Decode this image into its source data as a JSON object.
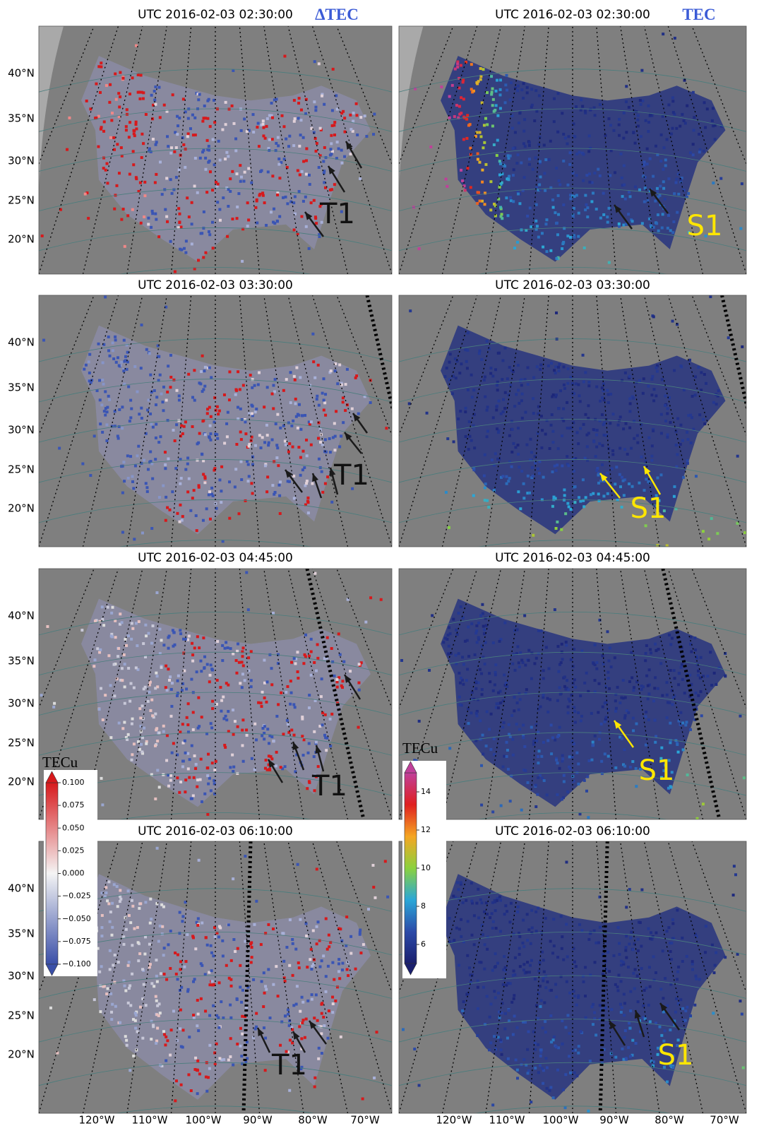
{
  "column_labels": [
    "ΔTEC",
    "TEC"
  ],
  "panels": [
    {
      "title": "UTC 2016-02-03 02:30:00",
      "annotation": "T1"
    },
    {
      "title": "UTC 2016-02-03 02:30:00",
      "annotation": "S1"
    },
    {
      "title": "UTC 2016-02-03 03:30:00",
      "annotation": "T1"
    },
    {
      "title": "UTC 2016-02-03 03:30:00",
      "annotation": "S1"
    },
    {
      "title": "UTC 2016-02-03 04:45:00",
      "annotation": "T1"
    },
    {
      "title": "UTC 2016-02-03 04:45:00",
      "annotation": "S1"
    },
    {
      "title": "UTC 2016-02-03 06:10:00",
      "annotation": "T1"
    },
    {
      "title": "UTC 2016-02-03 06:10:00",
      "annotation": "S1"
    }
  ],
  "lat_labels": [
    "40°N",
    "35°N",
    "30°N",
    "25°N",
    "20°N"
  ],
  "lon_labels": [
    "120°W",
    "110°W",
    "100°W",
    "90°W",
    "80°W",
    "70°W"
  ],
  "colorbars": [
    {
      "label": "TECu",
      "lim": [
        -0.1,
        0.1
      ],
      "colors": [
        "#3a4fa8",
        "#f4f4f4",
        "#d7191c"
      ],
      "ticks": [
        {
          "value": 0.1,
          "label": "0.100"
        },
        {
          "value": 0.075,
          "label": "0.075"
        },
        {
          "value": 0.05,
          "label": "0.050"
        },
        {
          "value": 0.025,
          "label": "0.025"
        },
        {
          "value": 0,
          "label": "0.000"
        },
        {
          "value": -0.025,
          "label": "−0.025"
        },
        {
          "value": -0.05,
          "label": "−0.050"
        },
        {
          "value": -0.075,
          "label": "−0.075"
        },
        {
          "value": -0.1,
          "label": "−0.100"
        }
      ]
    },
    {
      "label": "TECu",
      "lim": [
        5,
        15
      ],
      "colors": [
        "#1a1f6e",
        "#2c4aa8",
        "#2aa7d8",
        "#8bd13e",
        "#f5a623",
        "#e02020",
        "#c0409a"
      ],
      "ticks": [
        6,
        8,
        10,
        12,
        14
      ]
    }
  ]
}
